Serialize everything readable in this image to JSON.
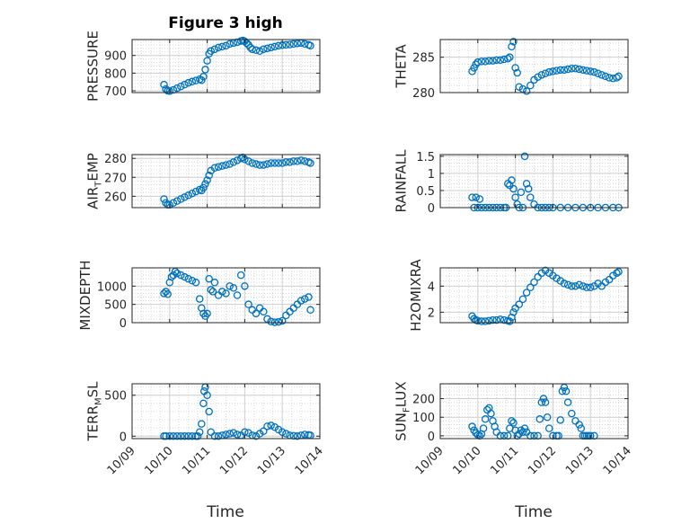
{
  "title": "Figure 3 high",
  "xlabel": "Time",
  "colors": {
    "marker": "#0072BD",
    "axis": "#262626",
    "grid": "#d9d9d9"
  },
  "x_ticks": [
    "10/09",
    "10/10",
    "10/11",
    "10/12",
    "10/13",
    "10/14"
  ],
  "chart_data": [
    {
      "type": "scatter",
      "ylabel": "PRESSURE",
      "ylim": [
        690,
        990
      ],
      "yticks": [
        "700",
        "800",
        "900"
      ],
      "grid": true,
      "minor_grid": true,
      "x": [
        9.85,
        9.9,
        9.95,
        10.0,
        10.1,
        10.2,
        10.3,
        10.4,
        10.5,
        10.6,
        10.7,
        10.8,
        10.85,
        10.9,
        10.95,
        11.0,
        11.05,
        11.1,
        11.2,
        11.3,
        11.4,
        11.5,
        11.6,
        11.7,
        11.8,
        11.9,
        11.95,
        12.0,
        12.05,
        12.1,
        12.15,
        12.2,
        12.3,
        12.4,
        12.5,
        12.6,
        12.7,
        12.8,
        12.9,
        13.0,
        13.1,
        13.2,
        13.3,
        13.4,
        13.5,
        13.6,
        13.7,
        13.75
      ],
      "y": [
        735,
        710,
        700,
        698,
        705,
        715,
        725,
        735,
        745,
        752,
        758,
        765,
        760,
        780,
        820,
        870,
        910,
        925,
        935,
        945,
        950,
        955,
        965,
        970,
        975,
        982,
        985,
        980,
        970,
        960,
        945,
        935,
        930,
        925,
        935,
        940,
        945,
        950,
        955,
        958,
        960,
        962,
        965,
        968,
        970,
        965,
        960,
        955
      ]
    },
    {
      "type": "scatter",
      "ylabel": "THETA",
      "ylim": [
        280,
        287.5
      ],
      "yticks": [
        "280",
        "285"
      ],
      "grid": true,
      "minor_grid": true,
      "x": [
        9.85,
        9.9,
        9.95,
        10.0,
        10.1,
        10.2,
        10.3,
        10.4,
        10.5,
        10.6,
        10.7,
        10.8,
        10.85,
        10.9,
        10.95,
        11.0,
        11.05,
        11.1,
        11.2,
        11.3,
        11.4,
        11.5,
        11.6,
        11.7,
        11.8,
        11.9,
        12.0,
        12.1,
        12.2,
        12.3,
        12.4,
        12.5,
        12.6,
        12.7,
        12.8,
        12.9,
        13.0,
        13.1,
        13.2,
        13.3,
        13.4,
        13.5,
        13.6,
        13.7,
        13.75
      ],
      "y": [
        283.0,
        283.5,
        284.0,
        284.3,
        284.4,
        284.4,
        284.5,
        284.5,
        284.6,
        284.6,
        284.7,
        284.8,
        285.0,
        286.5,
        287.2,
        283.5,
        282.8,
        280.8,
        280.5,
        280.2,
        281.0,
        281.8,
        282.2,
        282.5,
        282.7,
        282.9,
        283.0,
        283.1,
        283.2,
        283.2,
        283.3,
        283.4,
        283.4,
        283.3,
        283.2,
        283.1,
        283.0,
        282.9,
        282.7,
        282.5,
        282.3,
        282.1,
        282.0,
        282.1,
        282.3
      ]
    },
    {
      "type": "scatter",
      "ylabel": "AIR_TEMP",
      "ylim": [
        254,
        282
      ],
      "yticks": [
        "260",
        "270",
        "280"
      ],
      "grid": true,
      "minor_grid": true,
      "x": [
        9.85,
        9.9,
        9.95,
        10.0,
        10.1,
        10.2,
        10.3,
        10.4,
        10.5,
        10.6,
        10.7,
        10.8,
        10.85,
        10.9,
        10.95,
        11.0,
        11.05,
        11.1,
        11.2,
        11.3,
        11.4,
        11.5,
        11.6,
        11.7,
        11.8,
        11.9,
        11.95,
        12.0,
        12.1,
        12.2,
        12.3,
        12.4,
        12.5,
        12.6,
        12.7,
        12.8,
        12.9,
        13.0,
        13.1,
        13.2,
        13.3,
        13.4,
        13.5,
        13.6,
        13.7,
        13.75
      ],
      "y": [
        258.5,
        256.5,
        255.5,
        255.5,
        256.5,
        257.5,
        258.5,
        259.5,
        260.5,
        261.5,
        262.5,
        263.5,
        263.0,
        264.5,
        266.5,
        268.5,
        271.0,
        273.5,
        275.0,
        275.5,
        276.0,
        276.5,
        277.0,
        278.0,
        279.0,
        280.0,
        280.5,
        279.5,
        278.5,
        277.5,
        277.0,
        276.5,
        276.5,
        277.0,
        277.5,
        277.5,
        277.5,
        277.5,
        278.0,
        278.0,
        278.5,
        278.5,
        279.0,
        278.5,
        278.0,
        277.5
      ]
    },
    {
      "type": "scatter",
      "ylabel": "RAINFALL",
      "ylim": [
        0,
        1.55
      ],
      "yticks": [
        "0",
        "0.5",
        "1",
        "1.5"
      ],
      "grid": true,
      "minor_grid": true,
      "x": [
        9.85,
        9.9,
        9.95,
        10.0,
        10.05,
        10.1,
        10.2,
        10.3,
        10.4,
        10.5,
        10.6,
        10.7,
        10.75,
        10.8,
        10.85,
        10.9,
        10.95,
        11.0,
        11.05,
        11.1,
        11.15,
        11.2,
        11.25,
        11.3,
        11.35,
        11.4,
        11.5,
        11.6,
        11.7,
        11.8,
        11.9,
        12.0,
        12.2,
        12.4,
        12.6,
        12.8,
        13.0,
        13.2,
        13.4,
        13.6,
        13.75
      ],
      "y": [
        0.3,
        0.0,
        0.3,
        0.0,
        0.25,
        0.0,
        0.0,
        0.0,
        0.0,
        0.0,
        0.0,
        0.0,
        0.0,
        0.7,
        0.65,
        0.8,
        0.55,
        0.3,
        0.1,
        0.0,
        0.45,
        0.0,
        1.5,
        0.7,
        0.55,
        0.3,
        0.1,
        0.0,
        0.0,
        0.0,
        0.0,
        0.0,
        0.0,
        0.0,
        0.0,
        0.0,
        0.0,
        0.0,
        0.0,
        0.0,
        0.0
      ]
    },
    {
      "type": "scatter",
      "ylabel": "MIXDEPTH",
      "ylim": [
        0,
        1500
      ],
      "yticks": [
        "0",
        "500",
        "1000"
      ],
      "grid": true,
      "minor_grid": true,
      "x": [
        9.85,
        9.9,
        9.95,
        10.0,
        10.05,
        10.1,
        10.15,
        10.2,
        10.3,
        10.4,
        10.5,
        10.6,
        10.7,
        10.8,
        10.85,
        10.9,
        10.95,
        11.0,
        11.05,
        11.1,
        11.15,
        11.2,
        11.3,
        11.4,
        11.5,
        11.6,
        11.7,
        11.8,
        11.9,
        12.0,
        12.1,
        12.2,
        12.3,
        12.4,
        12.5,
        12.6,
        12.7,
        12.8,
        12.9,
        13.0,
        13.1,
        13.2,
        13.3,
        13.4,
        13.5,
        13.6,
        13.7,
        13.75
      ],
      "y": [
        800,
        850,
        780,
        1100,
        1250,
        1300,
        1400,
        1350,
        1300,
        1250,
        1200,
        1150,
        1100,
        650,
        400,
        250,
        180,
        250,
        1200,
        900,
        850,
        1100,
        750,
        850,
        800,
        1000,
        950,
        750,
        1300,
        1000,
        500,
        350,
        250,
        400,
        300,
        100,
        30,
        10,
        20,
        50,
        200,
        300,
        400,
        500,
        600,
        650,
        700,
        350
      ]
    },
    {
      "type": "scatter",
      "ylabel": "H2OMIXRA",
      "ylim": [
        1.2,
        5.4
      ],
      "yticks": [
        "2",
        "4"
      ],
      "grid": true,
      "minor_grid": true,
      "x": [
        9.85,
        9.9,
        9.95,
        10.0,
        10.1,
        10.2,
        10.3,
        10.4,
        10.5,
        10.6,
        10.7,
        10.8,
        10.85,
        10.9,
        10.95,
        11.0,
        11.1,
        11.2,
        11.3,
        11.4,
        11.5,
        11.6,
        11.7,
        11.8,
        11.9,
        12.0,
        12.1,
        12.2,
        12.3,
        12.4,
        12.5,
        12.6,
        12.7,
        12.8,
        12.9,
        13.0,
        13.1,
        13.2,
        13.3,
        13.4,
        13.5,
        13.6,
        13.7,
        13.75
      ],
      "y": [
        1.7,
        1.5,
        1.4,
        1.35,
        1.3,
        1.3,
        1.35,
        1.4,
        1.4,
        1.45,
        1.4,
        1.35,
        1.3,
        1.6,
        2.0,
        2.3,
        2.6,
        3.0,
        3.5,
        3.9,
        4.3,
        4.7,
        5.0,
        5.2,
        5.0,
        4.8,
        4.6,
        4.4,
        4.2,
        4.1,
        4.0,
        4.0,
        4.1,
        4.0,
        3.9,
        3.9,
        4.0,
        4.2,
        4.0,
        4.3,
        4.5,
        4.8,
        5.0,
        5.1
      ]
    },
    {
      "type": "scatter",
      "ylabel": "TERR_MSL",
      "ylim": [
        -30,
        640
      ],
      "yticks": [
        "0",
        "500"
      ],
      "grid": true,
      "minor_grid": true,
      "x": [
        9.85,
        9.9,
        10.0,
        10.1,
        10.2,
        10.3,
        10.4,
        10.5,
        10.6,
        10.7,
        10.75,
        10.8,
        10.85,
        10.9,
        10.92,
        10.95,
        11.0,
        11.05,
        11.1,
        11.2,
        11.3,
        11.4,
        11.5,
        11.6,
        11.7,
        11.8,
        11.9,
        12.0,
        12.1,
        12.2,
        12.3,
        12.4,
        12.5,
        12.6,
        12.7,
        12.8,
        12.9,
        13.0,
        13.1,
        13.2,
        13.3,
        13.4,
        13.5,
        13.6,
        13.7,
        13.75
      ],
      "y": [
        0,
        0,
        0,
        0,
        0,
        0,
        0,
        0,
        0,
        0,
        0,
        50,
        150,
        400,
        550,
        600,
        500,
        300,
        50,
        0,
        0,
        10,
        20,
        30,
        40,
        20,
        10,
        50,
        40,
        10,
        0,
        30,
        60,
        120,
        130,
        110,
        80,
        50,
        30,
        10,
        5,
        0,
        10,
        20,
        15,
        10
      ]
    },
    {
      "type": "scatter",
      "ylabel": "SUN_FLUX",
      "ylim": [
        -15,
        280
      ],
      "yticks": [
        "0",
        "100",
        "200"
      ],
      "grid": true,
      "minor_grid": true,
      "x": [
        9.85,
        9.9,
        9.95,
        10.0,
        10.05,
        10.1,
        10.15,
        10.2,
        10.25,
        10.3,
        10.35,
        10.4,
        10.45,
        10.5,
        10.6,
        10.7,
        10.8,
        10.85,
        10.9,
        10.95,
        11.0,
        11.05,
        11.1,
        11.15,
        11.2,
        11.25,
        11.3,
        11.4,
        11.5,
        11.6,
        11.65,
        11.7,
        11.75,
        11.8,
        11.85,
        11.9,
        12.0,
        12.1,
        12.15,
        12.2,
        12.25,
        12.3,
        12.35,
        12.4,
        12.5,
        12.6,
        12.7,
        12.75,
        12.8,
        12.85,
        12.9,
        12.95,
        13.0,
        13.1
      ],
      "y": [
        50,
        30,
        15,
        5,
        0,
        10,
        40,
        90,
        140,
        150,
        120,
        80,
        50,
        20,
        0,
        0,
        0,
        40,
        80,
        70,
        30,
        0,
        10,
        30,
        20,
        40,
        20,
        0,
        0,
        0,
        90,
        180,
        200,
        180,
        100,
        40,
        0,
        0,
        0,
        85,
        240,
        260,
        240,
        180,
        120,
        80,
        60,
        40,
        0,
        0,
        0,
        0,
        0,
        0
      ]
    }
  ]
}
